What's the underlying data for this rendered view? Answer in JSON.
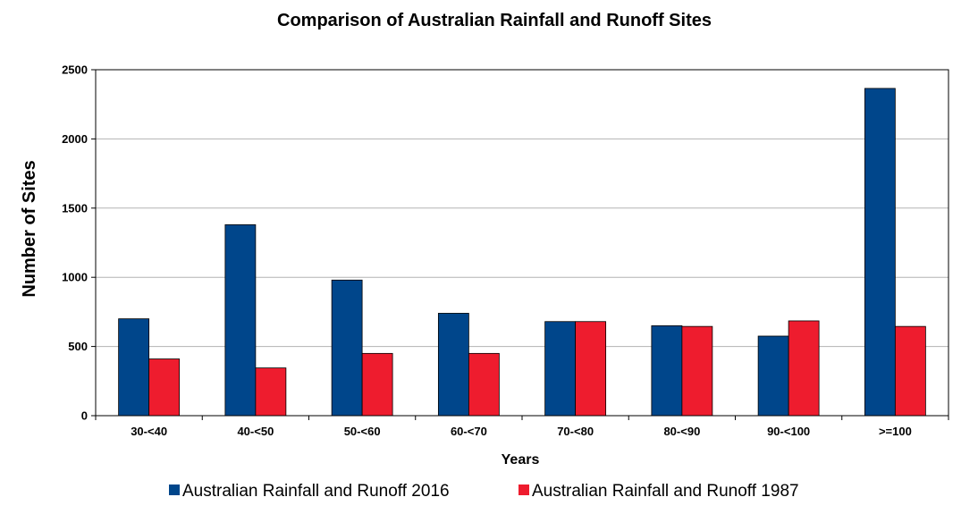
{
  "chart_data": {
    "type": "bar",
    "title": "Comparison of Australian Rainfall and Runoff Sites",
    "xlabel": "Years",
    "ylabel": "Number of Sites",
    "categories": [
      "30-<40",
      "40-<50",
      "50-<60",
      "60-<70",
      "70-<80",
      "80-<90",
      "90-<100",
      ">=100"
    ],
    "series": [
      {
        "name": "Australian Rainfall and Runoff 2016",
        "color": "#00468b",
        "values": [
          700,
          1380,
          980,
          740,
          680,
          650,
          575,
          2365
        ]
      },
      {
        "name": "Australian Rainfall and Runoff 1987",
        "color": "#ee1c2e",
        "values": [
          410,
          345,
          450,
          450,
          680,
          645,
          685,
          645
        ]
      }
    ],
    "ylim": [
      0,
      2500
    ],
    "yticks": [
      0,
      500,
      1000,
      1500,
      2000,
      2500
    ],
    "grid": true,
    "legend": "bottom"
  }
}
